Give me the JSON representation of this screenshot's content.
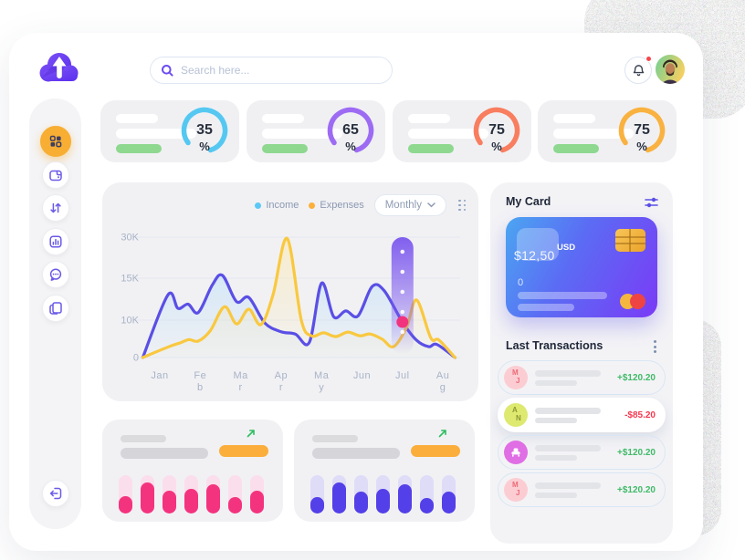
{
  "header": {
    "logo": "cloud-upload-logo",
    "search": {
      "placeholder": "Search here..."
    },
    "notifications": {
      "has_unread": true
    },
    "user": {
      "avatar": "portrait-photo"
    }
  },
  "sidebar": {
    "items": [
      {
        "id": "dashboard",
        "icon": "grid-icon",
        "active": true
      },
      {
        "id": "wallet",
        "icon": "wallet-icon",
        "active": false
      },
      {
        "id": "transfers",
        "icon": "transfer-arrows-icon",
        "active": false
      },
      {
        "id": "analytics",
        "icon": "bar-chart-icon",
        "active": false
      },
      {
        "id": "messages",
        "icon": "chat-icon",
        "active": false
      },
      {
        "id": "documents",
        "icon": "documents-icon",
        "active": false
      }
    ],
    "logout": {
      "icon": "logout-icon"
    }
  },
  "stat_cards": [
    {
      "percent": "35",
      "unit": "%",
      "arc_color": "#55C8F2"
    },
    {
      "percent": "65",
      "unit": "%",
      "arc_color": "#9D6BF3"
    },
    {
      "percent": "75",
      "unit": "%",
      "arc_color": "#F87E5F"
    },
    {
      "percent": "75",
      "unit": "%",
      "arc_color": "#F9B240"
    }
  ],
  "main_chart": {
    "legend": [
      {
        "label": "Income",
        "dot_color": "#5BC8F5"
      },
      {
        "label": "Expenses",
        "dot_color": "#FBB03B"
      }
    ],
    "range_selector": {
      "label": "Monthly"
    },
    "y_ticks": [
      "30K",
      "15K",
      "10K",
      "0"
    ],
    "x_labels": [
      [
        "Jan"
      ],
      [
        "Fe",
        "b"
      ],
      [
        "Ma",
        "r"
      ],
      [
        "Ap",
        "r"
      ],
      [
        "Ma",
        "y"
      ],
      [
        "Jun"
      ],
      [
        "Jul"
      ],
      [
        "Au",
        "g"
      ]
    ]
  },
  "chart_data": [
    {
      "type": "line",
      "title": "Income vs Expenses (Monthly)",
      "categories": [
        "Jan",
        "Feb",
        "Mar",
        "Apr",
        "May",
        "Jun",
        "Jul",
        "Aug"
      ],
      "y_axis": {
        "ticks": [
          0,
          10000,
          15000,
          30000
        ],
        "tick_labels": [
          "0",
          "10K",
          "15K",
          "30K"
        ],
        "note": "non-linear spacing as rendered"
      },
      "grid": true,
      "legend_position": "top-right",
      "series": [
        {
          "name": "Income",
          "color": "#5A4FE5",
          "fill": "#BFE0F8",
          "x": [
            -0.42,
            0.2,
            0.45,
            0.7,
            0.95,
            1.3,
            1.55,
            1.9,
            2.2,
            2.6,
            3.0,
            3.35,
            3.7,
            4.0,
            4.3,
            4.6,
            4.9,
            5.25,
            5.55,
            6.0,
            6.35,
            6.65,
            6.85,
            7.3
          ],
          "values": [
            0,
            13000,
            11400,
            11900,
            10900,
            14200,
            16000,
            12200,
            12700,
            9200,
            6900,
            6300,
            4100,
            14400,
            10400,
            11100,
            10500,
            14000,
            13500,
            9500,
            4600,
            2900,
            3500,
            0
          ]
        },
        {
          "name": "Expenses",
          "color": "#F9C83F",
          "fill": "#FBE9B5",
          "x": [
            -0.42,
            0.25,
            0.5,
            0.72,
            0.95,
            1.25,
            1.6,
            1.9,
            2.2,
            2.5,
            2.8,
            3.15,
            3.5,
            3.75,
            4.05,
            4.35,
            4.65,
            4.95,
            5.2,
            5.5,
            5.78,
            6.1,
            6.35,
            6.7,
            6.9,
            7.3
          ],
          "values": [
            0,
            3000,
            3900,
            4800,
            4400,
            7200,
            11600,
            9000,
            11300,
            8800,
            13000,
            29500,
            10000,
            5800,
            6600,
            5600,
            6800,
            5800,
            6300,
            4900,
            2900,
            8000,
            12400,
            5300,
            4700,
            0
          ]
        }
      ],
      "highlight": {
        "category": "Jul",
        "x": 6,
        "series": "Income",
        "value": 9500,
        "marker_color": "#F1337E",
        "tooltip_style": "vertical-pill",
        "pill_color": "#7B57EE"
      }
    },
    {
      "type": "gauge",
      "values": [
        35,
        65,
        75,
        75
      ],
      "unit": "%",
      "colors": [
        "#55C8F2",
        "#9D6BF3",
        "#F87E5F",
        "#F9B240"
      ]
    },
    {
      "type": "bar",
      "name": "activity-left",
      "bar_color": "#F4337F",
      "track_color": "#FBDEEB",
      "values_pct": [
        46,
        80,
        60,
        64,
        75,
        42,
        60
      ]
    },
    {
      "type": "bar",
      "name": "activity-right",
      "bar_color": "#5340E8",
      "track_color": "#DFDCF8",
      "values_pct": [
        42,
        80,
        58,
        64,
        76,
        40,
        58
      ]
    }
  ],
  "my_card": {
    "title": "My Card",
    "balance": "$12,50",
    "currency": "USD",
    "sub_value": "0",
    "network": "mastercard"
  },
  "transactions": {
    "title": "Last Transactions",
    "rows": [
      {
        "avatar_letters": [
          "M",
          "J"
        ],
        "avatar_bg": "#FBCDD3",
        "avatar_fg": "#EC6A76",
        "amount": "+$120.20",
        "amount_color": "#41BA68",
        "highlighted": false
      },
      {
        "avatar_letters": [
          "A",
          "N"
        ],
        "avatar_bg": "#DDE96F",
        "avatar_fg": "#8D9833",
        "amount": "-$85.20",
        "amount_color": "#F4374F",
        "highlighted": true
      },
      {
        "avatar_icon": "armchair-icon",
        "avatar_bg": "#E06EE4",
        "amount": "+$120.20",
        "amount_color": "#41BA68",
        "highlighted": false
      },
      {
        "avatar_letters": [
          "M",
          "J"
        ],
        "avatar_bg": "#FBCDD3",
        "avatar_fg": "#EC6A76",
        "amount": "+$120.20",
        "amount_color": "#41BA68",
        "highlighted": false
      }
    ]
  },
  "mini_charts": [
    {
      "trend": "up",
      "trend_color": "#2EBE5F",
      "pill_color": "#FBAE3B"
    },
    {
      "trend": "up",
      "trend_color": "#2EBE5F",
      "pill_color": "#FBAE3B"
    }
  ]
}
